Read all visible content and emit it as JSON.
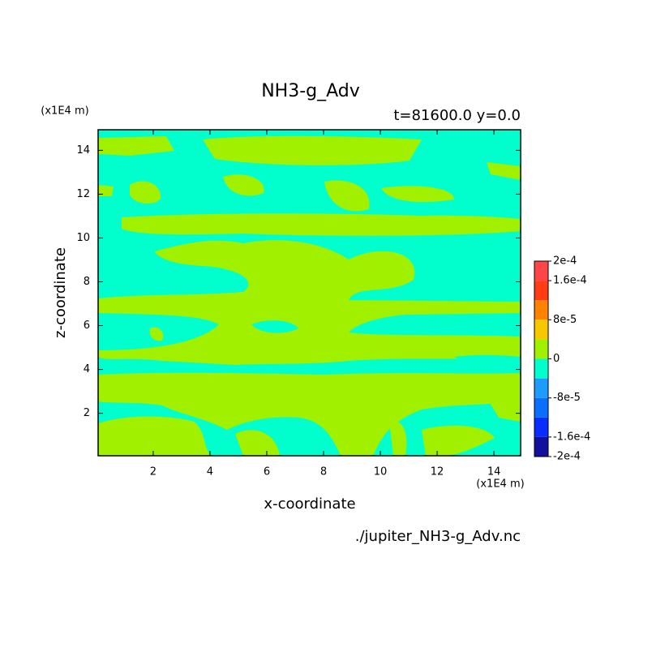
{
  "chart_data": {
    "type": "contour",
    "title": "NH3-g_Adv",
    "subtitle": "t=81600.0 y=0.0",
    "x_label": "x-coordinate",
    "y_label": "z-coordinate",
    "x_unit": "(x1E4 m)",
    "y_unit": "(x1E4 m)",
    "source": "./jupiter_NH3-g_Adv.nc",
    "xlim": [
      0.06,
      14.94
    ],
    "ylim": [
      0.06,
      14.94
    ],
    "xticks": [
      2,
      4,
      6,
      8,
      10,
      12,
      14
    ],
    "yticks": [
      2,
      4,
      6,
      8,
      10,
      12,
      14
    ],
    "colorbar": {
      "levels": [
        -0.0002,
        -0.00016,
        -0.00012,
        -8e-05,
        -4e-05,
        0,
        4e-05,
        8e-05,
        0.00012,
        0.00016,
        0.0002
      ],
      "colors": [
        "#12109c",
        "#0a2dff",
        "#0a6eff",
        "#1e9bff",
        "#00ffcc",
        "#a0f000",
        "#f5c800",
        "#ff8200",
        "#ff3c14",
        "#ff4646"
      ],
      "ticks": [
        {
          "value": 0.0002,
          "label": "2e-4"
        },
        {
          "value": 0.00016,
          "label": "1.6e-4"
        },
        {
          "value": 8e-05,
          "label": "8e-5"
        },
        0,
        {
          "value": -8e-05,
          "label": "-8e-5"
        },
        {
          "value": -0.00016,
          "label": "-1.6e-4"
        },
        {
          "value": -0.0002,
          "label": "-2e-4"
        }
      ]
    }
  }
}
